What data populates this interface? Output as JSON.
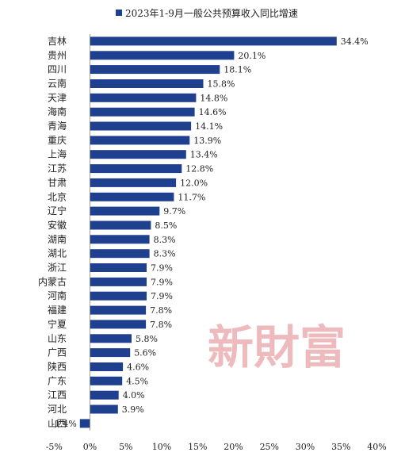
{
  "chart_data": {
    "type": "bar",
    "orientation": "horizontal",
    "title": "",
    "legend": {
      "label": "2023年1-9月一般公共预算收入同比增速",
      "color": "#1f3f8f",
      "position": "top"
    },
    "categories": [
      "吉林",
      "贵州",
      "四川",
      "云南",
      "天津",
      "海南",
      "青海",
      "重庆",
      "上海",
      "江苏",
      "甘肃",
      "北京",
      "辽宁",
      "安徽",
      "湖南",
      "湖北",
      "浙江",
      "内蒙古",
      "河南",
      "福建",
      "宁夏",
      "山东",
      "广西",
      "陕西",
      "广东",
      "江西",
      "河北",
      "山西"
    ],
    "values": [
      34.4,
      20.1,
      18.1,
      15.8,
      14.8,
      14.6,
      14.1,
      13.9,
      13.4,
      12.8,
      12.0,
      11.7,
      9.7,
      8.5,
      8.3,
      8.3,
      7.9,
      7.9,
      7.9,
      7.8,
      7.8,
      5.8,
      5.6,
      4.6,
      4.5,
      4.0,
      3.9,
      -1.4
    ],
    "value_labels": [
      "34.4%",
      "20.1%",
      "18.1%",
      "15.8%",
      "14.8%",
      "14.6%",
      "14.1%",
      "13.9%",
      "13.4%",
      "12.8%",
      "12.0%",
      "11.7%",
      "9.7%",
      "8.5%",
      "8.3%",
      "8.3%",
      "7.9%",
      "7.9%",
      "7.9%",
      "7.8%",
      "7.8%",
      "5.8%",
      "5.6%",
      "4.6%",
      "4.5%",
      "4.0%",
      "3.9%",
      "-1.4%"
    ],
    "xlim": [
      -5,
      40
    ],
    "xticks": [
      -5,
      0,
      5,
      10,
      15,
      20,
      25,
      30,
      35,
      40
    ],
    "xtick_labels": [
      "-5%",
      "0%",
      "5%",
      "10%",
      "15%",
      "20%",
      "25%",
      "30%",
      "35%",
      "40%"
    ],
    "grid": false,
    "bar_color": "#1f3f8f"
  },
  "watermark": {
    "text": "新財富",
    "color": "#e8a3a8"
  }
}
